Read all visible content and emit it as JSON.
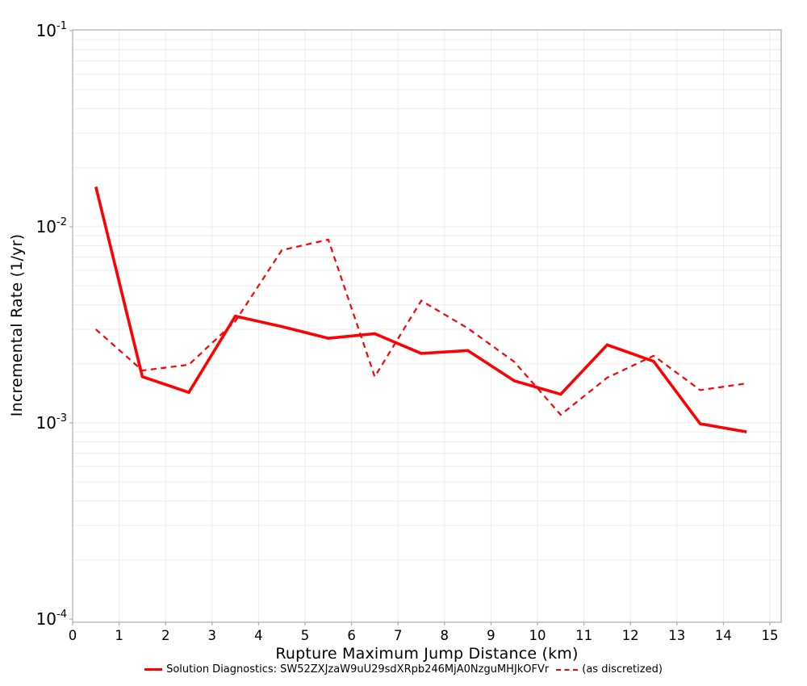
{
  "figure": {
    "x_axis": {
      "title": "Rupture Maximum Jump Distance (km)",
      "ticks": [
        "0",
        "1",
        "2",
        "3",
        "4",
        "5",
        "6",
        "7",
        "8",
        "9",
        "10",
        "11",
        "12",
        "13",
        "14",
        "15"
      ]
    },
    "y_axis": {
      "title": "Incremental Rate (1/yr)",
      "scale": "log",
      "tick_base": "10",
      "tick_exponents": [
        "-1",
        "-2",
        "-3",
        "-4"
      ]
    },
    "legend": [
      {
        "label": "Solution Diagnostics: SW52ZXJzaW9uU29sdXRpb246MjA0NzguMHJkOFVr",
        "style": "solid"
      },
      {
        "label": "(as discretized)",
        "style": "dashed"
      }
    ],
    "colors": {
      "series": "#ff0000",
      "grid": "#ececec",
      "frame": "#b3b3b3",
      "tick": "#b3b3b3",
      "text": "#000000",
      "background": "#ffffff"
    }
  },
  "chart_data": {
    "type": "line",
    "title": "",
    "xlabel": "Rupture Maximum Jump Distance (km)",
    "ylabel": "Incremental Rate (1/yr)",
    "yscale": "log",
    "xlim": [
      0,
      15
    ],
    "ylim": [
      0.0001,
      0.1
    ],
    "grid": true,
    "legend_position": "bottom",
    "x": [
      0.5,
      1.5,
      2.5,
      3.5,
      4.5,
      5.5,
      6.5,
      7.5,
      8.5,
      9.5,
      10.5,
      11.5,
      12.5,
      13.5,
      14.5
    ],
    "series": [
      {
        "name": "Solution Diagnostics: SW52ZXJzaW9uU29sdXRpb246MjA0NzguMHJkOFVr",
        "style": "solid",
        "values": [
          0.016,
          0.00172,
          0.00143,
          0.0035,
          0.0031,
          0.0027,
          0.00285,
          0.00226,
          0.00234,
          0.00164,
          0.0014,
          0.0025,
          0.00206,
          0.00099,
          0.0009
        ]
      },
      {
        "name": "(as discretized)",
        "style": "dashed",
        "values": [
          0.003,
          0.00185,
          0.00198,
          0.0033,
          0.0076,
          0.0086,
          0.00172,
          0.0042,
          0.00304,
          0.00205,
          0.0011,
          0.0017,
          0.0022,
          0.00147,
          0.00159
        ]
      }
    ]
  }
}
